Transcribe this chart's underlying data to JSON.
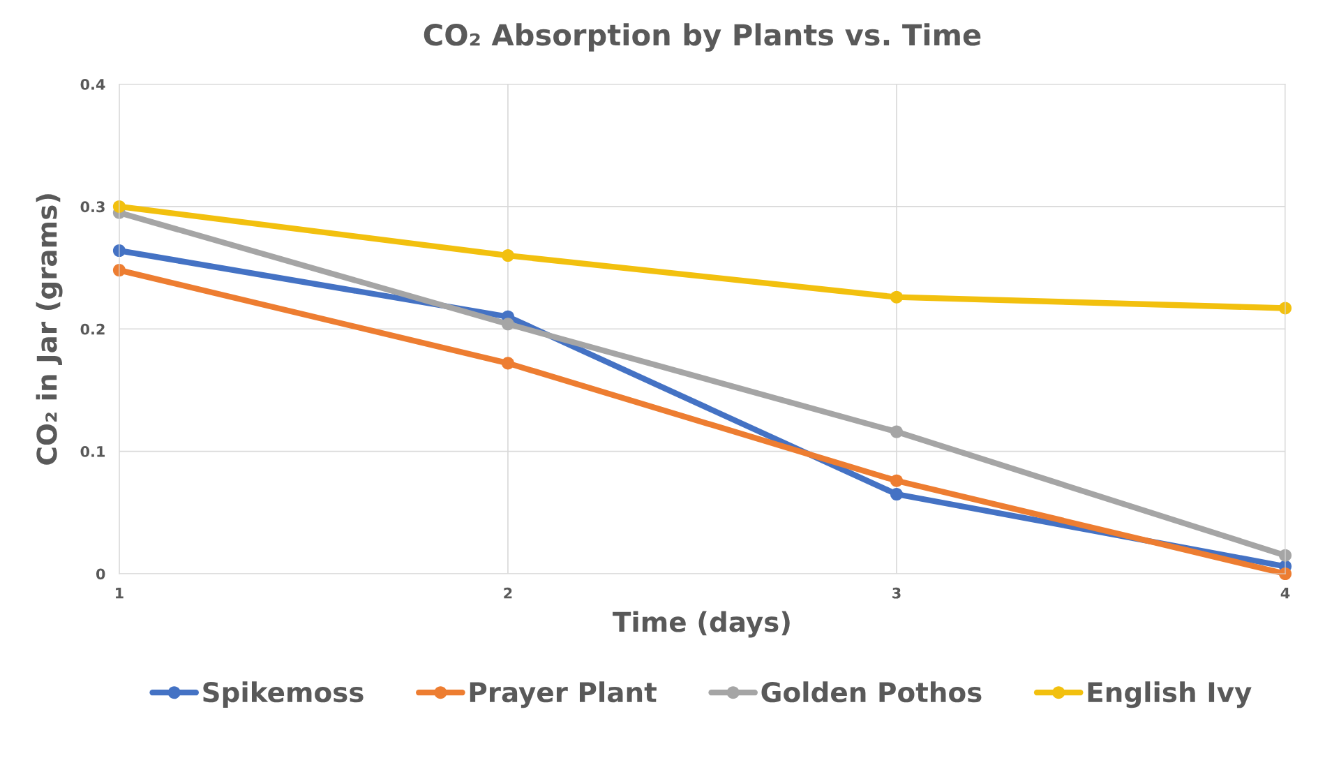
{
  "chart_data": {
    "type": "line",
    "title": "CO₂ Absorption by Plants vs. Time",
    "xlabel": "Time (days)",
    "ylabel": "CO₂ in Jar (grams)",
    "x": [
      1,
      2,
      3,
      4
    ],
    "series": [
      {
        "name": "Spikemoss",
        "color": "#4472c4",
        "values": [
          0.264,
          0.21,
          0.065,
          0.006
        ]
      },
      {
        "name": "Prayer Plant",
        "color": "#ed7d31",
        "values": [
          0.248,
          0.172,
          0.076,
          0.0
        ]
      },
      {
        "name": "Golden Pothos",
        "color": "#a5a5a5",
        "values": [
          0.295,
          0.204,
          0.116,
          0.015
        ]
      },
      {
        "name": "English Ivy",
        "color": "#f2c00e",
        "values": [
          0.3,
          0.26,
          0.226,
          0.217
        ]
      }
    ],
    "xlim": [
      1,
      4
    ],
    "xticks": [
      1,
      2,
      3,
      4
    ],
    "ylim": [
      0,
      0.4
    ],
    "yticks": [
      0,
      0.1,
      0.2,
      0.3,
      0.4
    ],
    "grid": true,
    "legend": "bottom",
    "marker": "circle",
    "line_style": "solid"
  }
}
